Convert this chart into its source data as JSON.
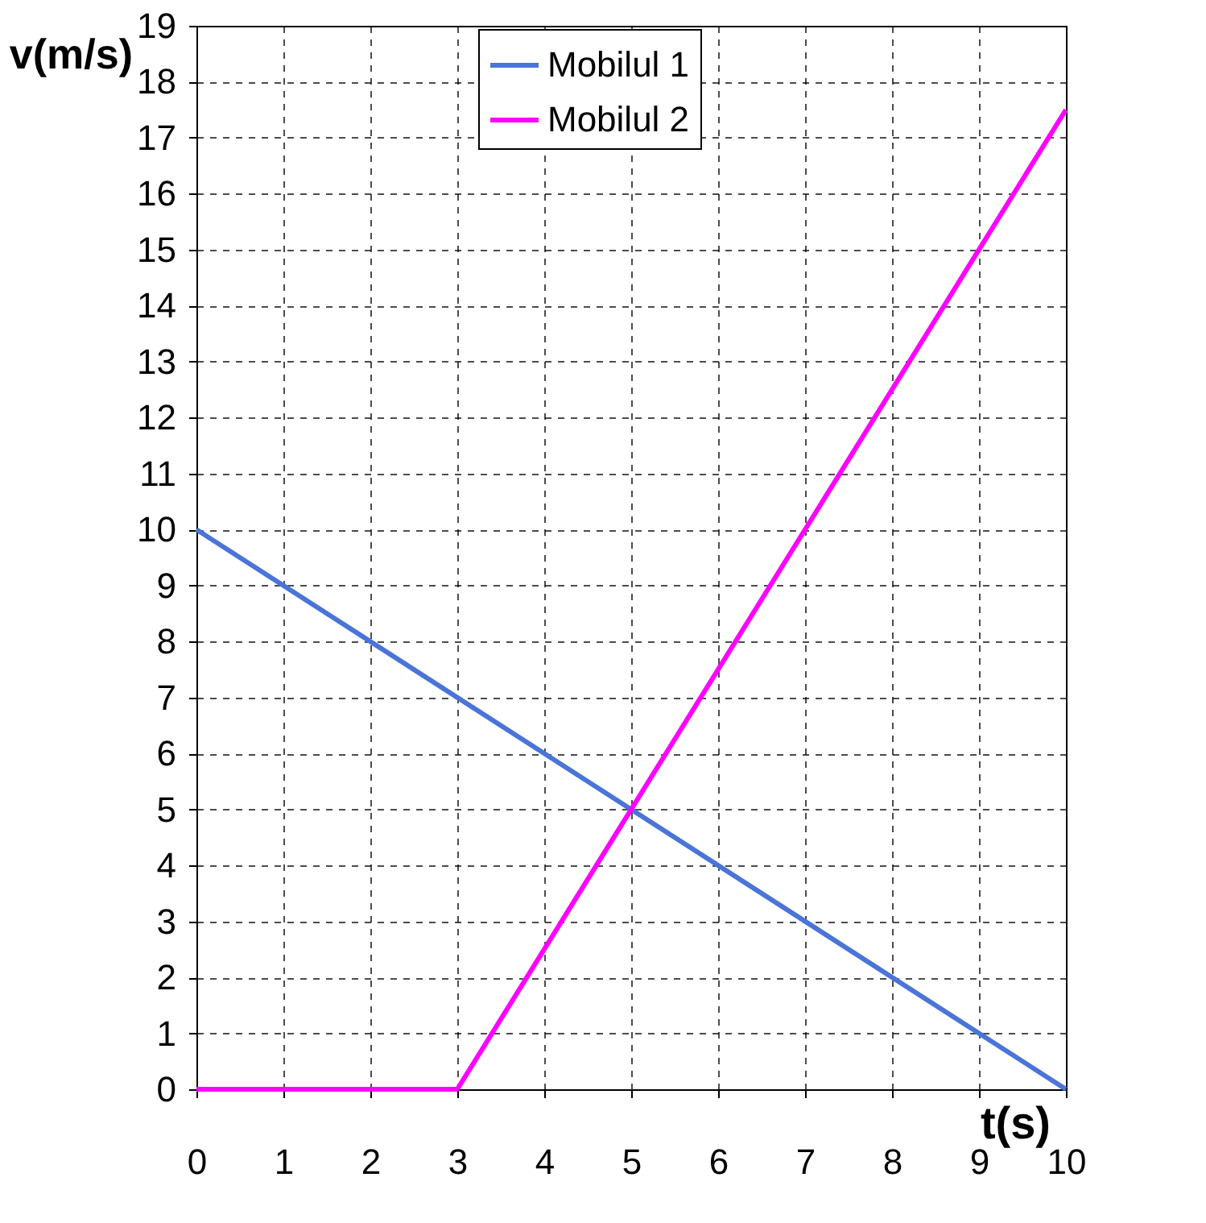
{
  "chart_data": {
    "type": "line",
    "xlabel": "t(s)",
    "ylabel": "v(m/s)",
    "xlim": [
      0,
      10
    ],
    "xticks": [
      0,
      1,
      2,
      3,
      4,
      5,
      6,
      7,
      8,
      9,
      10
    ],
    "ylim": [
      0,
      19
    ],
    "yticks": [
      0,
      1,
      2,
      3,
      4,
      5,
      6,
      7,
      8,
      9,
      10,
      11,
      12,
      13,
      14,
      15,
      16,
      17,
      18,
      19
    ],
    "grid": true,
    "legend": "top",
    "line_style": "solid",
    "marker": "none",
    "series": [
      {
        "name": "Mobilul 1",
        "color": "#4a74d8",
        "x": [
          0,
          10
        ],
        "values": [
          10,
          0
        ]
      },
      {
        "name": "Mobilul 2",
        "color": "#ff00ff",
        "x": [
          0,
          3,
          10
        ],
        "values": [
          0,
          0,
          17.5
        ]
      }
    ]
  }
}
